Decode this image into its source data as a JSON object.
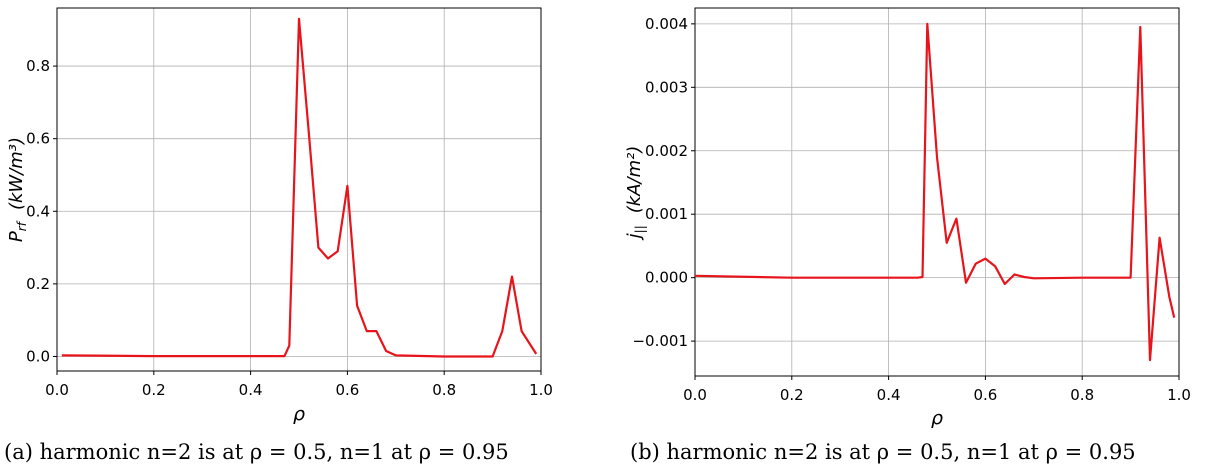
{
  "captions": [
    "(a) harmonic n=2 is at ρ = 0.5, n=1 at ρ = 0.95",
    "(b) harmonic n=2 is at ρ = 0.5, n=1 at ρ = 0.95"
  ],
  "chart_data": [
    {
      "type": "line",
      "xlabel": "ρ",
      "ylabel_main": "P",
      "ylabel_sub": "rf",
      "ylabel_unit": "(kW/m³)",
      "xlim": [
        0.0,
        1.0
      ],
      "ylim": [
        -0.04,
        0.96
      ],
      "xticks": [
        0.0,
        0.2,
        0.4,
        0.6,
        0.8,
        1.0
      ],
      "xtick_labels": [
        "0.0",
        "0.2",
        "0.4",
        "0.6",
        "0.8",
        "1.0"
      ],
      "yticks": [
        0.0,
        0.2,
        0.4,
        0.6,
        0.8
      ],
      "ytick_labels": [
        "0.0",
        "0.2",
        "0.4",
        "0.6",
        "0.8"
      ],
      "grid": true,
      "color": "#e8141b",
      "series": [
        {
          "x": [
            0.01,
            0.2,
            0.4,
            0.46,
            0.47,
            0.48,
            0.5,
            0.52,
            0.54,
            0.56,
            0.58,
            0.6,
            0.62,
            0.64,
            0.66,
            0.68,
            0.7,
            0.8,
            0.9,
            0.92,
            0.94,
            0.96,
            0.99
          ],
          "y": [
            0.003,
            0.001,
            0.001,
            0.001,
            0.001,
            0.03,
            0.93,
            0.62,
            0.3,
            0.27,
            0.29,
            0.47,
            0.14,
            0.07,
            0.07,
            0.015,
            0.003,
            0.0,
            0.0,
            0.07,
            0.22,
            0.07,
            0.007
          ]
        }
      ]
    },
    {
      "type": "line",
      "xlabel": "ρ",
      "ylabel_main": "j",
      "ylabel_sub": "||",
      "ylabel_unit": "(kA/m²)",
      "xlim": [
        0.0,
        1.0
      ],
      "ylim": [
        -0.00155,
        0.00425
      ],
      "xticks": [
        0.0,
        0.2,
        0.4,
        0.6,
        0.8,
        1.0
      ],
      "xtick_labels": [
        "0.0",
        "0.2",
        "0.4",
        "0.6",
        "0.8",
        "1.0"
      ],
      "yticks": [
        -0.001,
        0.0,
        0.001,
        0.002,
        0.003,
        0.004
      ],
      "ytick_labels": [
        "−0.001",
        "0.000",
        "0.001",
        "0.002",
        "0.003",
        "0.004"
      ],
      "grid": true,
      "color": "#e8141b",
      "series": [
        {
          "x": [
            0.0,
            0.2,
            0.44,
            0.46,
            0.47,
            0.48,
            0.5,
            0.52,
            0.54,
            0.56,
            0.58,
            0.6,
            0.62,
            0.64,
            0.66,
            0.68,
            0.7,
            0.8,
            0.9,
            0.92,
            0.94,
            0.96,
            0.98,
            0.99
          ],
          "y": [
            3e-05,
            0.0,
            0.0,
            0.0,
            1e-05,
            0.004,
            0.0019,
            0.00055,
            0.00093,
            -8e-05,
            0.00022,
            0.0003,
            0.00018,
            -0.0001,
            5e-05,
            1e-05,
            -1e-05,
            0.0,
            0.0,
            0.00395,
            -0.0013,
            0.00063,
            -0.0003,
            -0.00063
          ]
        }
      ]
    }
  ]
}
